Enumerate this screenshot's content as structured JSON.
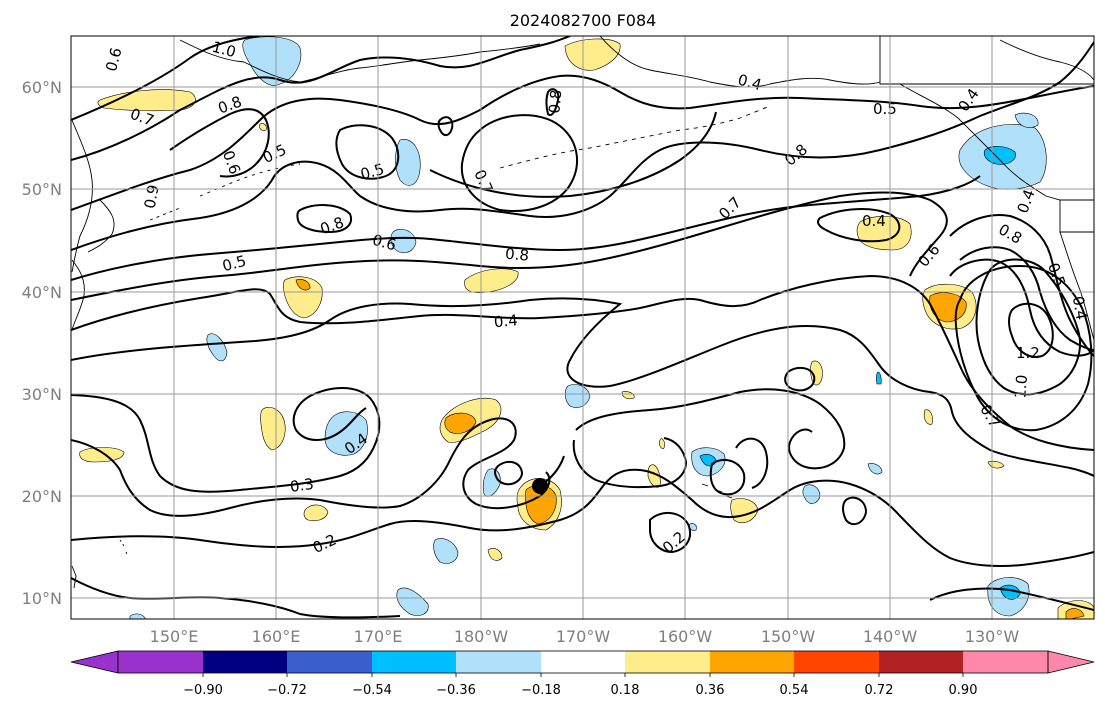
{
  "map": {
    "title": "2024082700 F084",
    "lat_labels": [
      "60°N",
      "50°N",
      "40°N",
      "30°N",
      "20°N",
      "10°N"
    ],
    "lon_labels": [
      "150°E",
      "160°E",
      "170°E",
      "180°W",
      "170°W",
      "160°W",
      "150°W",
      "140°W",
      "130°W"
    ],
    "contour_labels": [
      "1.0",
      "0.6",
      "0.7",
      "0.8",
      "0.5",
      "0.6",
      "0.9",
      "0.5",
      "0.8",
      "0.7",
      "0.8",
      "0.4",
      "0.5",
      "0.4",
      "0.8",
      "0.7",
      "0.4",
      "0.6",
      "0.8",
      "0.5",
      "0.8",
      "0.6",
      "0.4",
      "0.5",
      "0.4",
      "1.2",
      "1.0",
      "0.7",
      "0.4",
      "0.4",
      "0.3",
      "0.2",
      "0.2"
    ],
    "marker": "storm-center",
    "colorbar": {
      "ticks": [
        "−0.90",
        "−0.72",
        "−0.54",
        "−0.36",
        "−0.18",
        "0.18",
        "0.36",
        "0.54",
        "0.72",
        "0.90"
      ],
      "colors": [
        "#9932cc",
        "#000080",
        "#3a5fcd",
        "#00bfff",
        "#b0e0fa",
        "#ffffff",
        "#ffec8b",
        "#ffa500",
        "#ff4500",
        "#b22222",
        "#ff88aa"
      ]
    }
  }
}
